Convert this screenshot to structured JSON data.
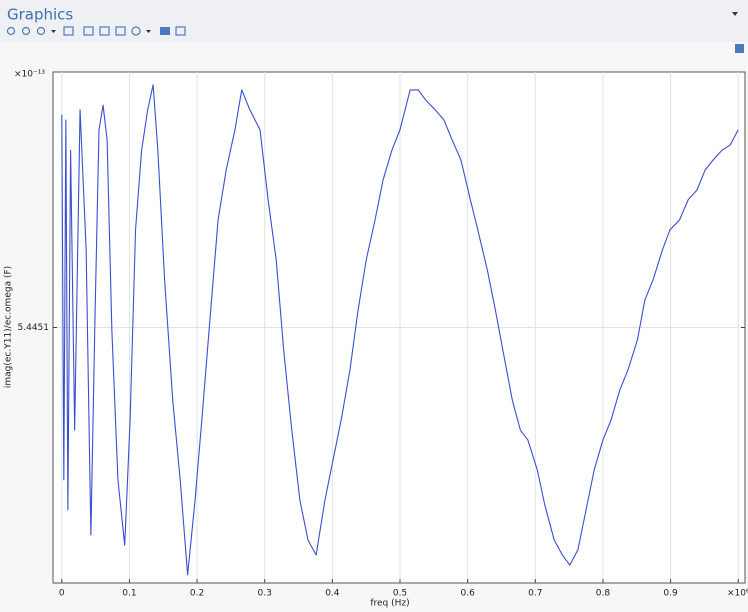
{
  "header": {
    "title": "Graphics"
  },
  "chart_data": {
    "type": "line",
    "x_label": "freq (Hz)",
    "y_label": "imag(ec.Y11)/ec.omega (F)",
    "x_multiplier": "×10⁶",
    "y_multiplier": "×10⁻¹³",
    "color": "#3a4fd0",
    "grid": true,
    "xlim": [
      -0.013,
      1.01
    ],
    "ylim": [
      5.44505,
      5.44515
    ],
    "xticks": [
      0,
      0.1,
      0.2,
      0.3,
      0.4,
      0.5,
      0.6,
      0.7,
      0.8,
      0.9,
      1
    ],
    "yticks": [
      5.4451
    ],
    "x": [
      0,
      0.003,
      0.006,
      0.009,
      0.013,
      0.019,
      0.027,
      0.036,
      0.043,
      0.049,
      0.055,
      0.061,
      0.067,
      0.074,
      0.083,
      0.093,
      0.101,
      0.109,
      0.118,
      0.127,
      0.135,
      0.142,
      0.152,
      0.164,
      0.175,
      0.186,
      0.197,
      0.207,
      0.219,
      0.231,
      0.243,
      0.256,
      0.266,
      0.278,
      0.293,
      0.305,
      0.317,
      0.328,
      0.34,
      0.352,
      0.364,
      0.376,
      0.389,
      0.401,
      0.413,
      0.426,
      0.438,
      0.45,
      0.463,
      0.475,
      0.488,
      0.5,
      0.515,
      0.527,
      0.538,
      0.552,
      0.565,
      0.577,
      0.59,
      0.604,
      0.615,
      0.629,
      0.641,
      0.652,
      0.666,
      0.678,
      0.689,
      0.703,
      0.714,
      0.728,
      0.74,
      0.751,
      0.763,
      0.775,
      0.787,
      0.8,
      0.812,
      0.825,
      0.837,
      0.851,
      0.862,
      0.874,
      0.888,
      0.899,
      0.913,
      0.926,
      0.939,
      0.951,
      0.963,
      0.976,
      0.988,
      1
    ],
    "values": [
      5.4451416,
      5.4450702,
      5.4451406,
      5.4450643,
      5.4451347,
      5.4450799,
      5.4451426,
      5.4451152,
      5.4450594,
      5.4451015,
      5.4451387,
      5.4451435,
      5.4451367,
      5.4450995,
      5.4450702,
      5.4450574,
      5.4450819,
      5.4451191,
      5.4451347,
      5.4451426,
      5.4451475,
      5.4451347,
      5.4451093,
      5.4450858,
      5.4450702,
      5.4450516,
      5.4450662,
      5.4450819,
      5.4451015,
      5.445121,
      5.4451308,
      5.4451387,
      5.4451465,
      5.4451426,
      5.4451387,
      5.445125,
      5.4451132,
      5.4450956,
      5.4450799,
      5.4450662,
      5.4450584,
      5.4450555,
      5.4450662,
      5.4450741,
      5.4450819,
      5.4450917,
      5.4451034,
      5.4451132,
      5.445121,
      5.4451289,
      5.4451347,
      5.4451387,
      5.4451465,
      5.4451465,
      5.4451445,
      5.4451426,
      5.4451406,
      5.4451367,
      5.4451328,
      5.445125,
      5.4451191,
      5.4451113,
      5.4451034,
      5.4450956,
      5.4450858,
      5.4450799,
      5.445078,
      5.4450721,
      5.4450653,
      5.4450584,
      5.4450555,
      5.4450535,
      5.4450565,
      5.4450643,
      5.4450721,
      5.445078,
      5.4450819,
      5.4450878,
      5.4450917,
      5.4450976,
      5.4451054,
      5.4451093,
      5.4451152,
      5.4451191,
      5.445121,
      5.445125,
      5.4451269,
      5.4451308,
      5.4451328,
      5.4451347,
      5.4451357,
      5.4451387
    ]
  }
}
